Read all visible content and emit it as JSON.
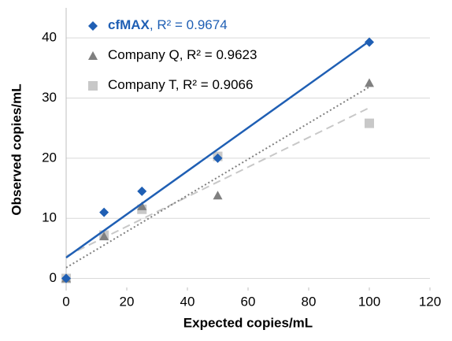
{
  "chart_data": {
    "type": "scatter",
    "xlabel": "Expected copies/mL",
    "ylabel": "Observed copies/mL",
    "xlim": [
      0,
      120
    ],
    "xticks": [
      0,
      20,
      40,
      60,
      80,
      100,
      120
    ],
    "ylim": [
      -1.5,
      45
    ],
    "yticks": [
      0,
      10,
      20,
      30,
      40
    ],
    "grid": true,
    "trendline": true,
    "x": [
      0,
      12.5,
      25,
      50,
      100
    ],
    "series": [
      {
        "name": "cfMAX",
        "r2_label": ", R² = 0.9674",
        "color": "#1f5fb4",
        "marker": "diamond",
        "line": "solid",
        "values": [
          0,
          11,
          14.5,
          20,
          39.3
        ]
      },
      {
        "name": "Company Q",
        "r2_label": ", R² = 0.9623",
        "color": "#808080",
        "marker": "triangle",
        "line": "dotted",
        "values": [
          0,
          7,
          12,
          13.8,
          32.5
        ]
      },
      {
        "name": "Company T",
        "r2_label": ", R² = 0.9066",
        "color": "#c8c8c8",
        "marker": "square",
        "line": "dashed",
        "values": [
          0,
          7.2,
          11.5,
          20.3,
          25.8
        ]
      }
    ]
  }
}
